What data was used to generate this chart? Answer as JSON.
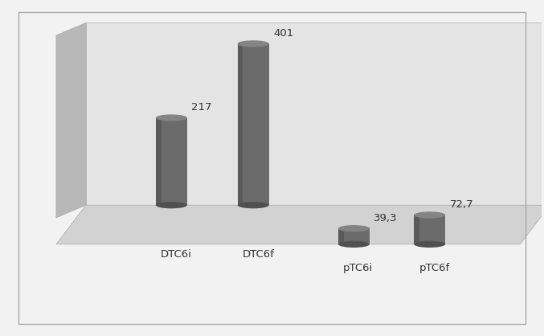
{
  "categories": [
    "DTC6i",
    "DTC6f",
    "pTC6i",
    "pTC6f"
  ],
  "values": [
    217,
    401,
    39.3,
    72.7
  ],
  "labels": [
    "217",
    "401",
    "39,3",
    "72,7"
  ],
  "bar_color_body": "#6b6b6b",
  "bar_color_top": "#848484",
  "bar_color_shadow": "#505050",
  "background_wall": "#e4e4e4",
  "background_floor_back": "#d2d2d2",
  "background_floor_front": "#c4c4c4",
  "background_left_wall": "#b8b8b8",
  "outer_bg": "#f2f2f2",
  "border_color": "#aaaaaa",
  "text_color": "#333333",
  "label_fontsize": 9.5,
  "tick_fontsize": 9.5,
  "max_val": 420
}
